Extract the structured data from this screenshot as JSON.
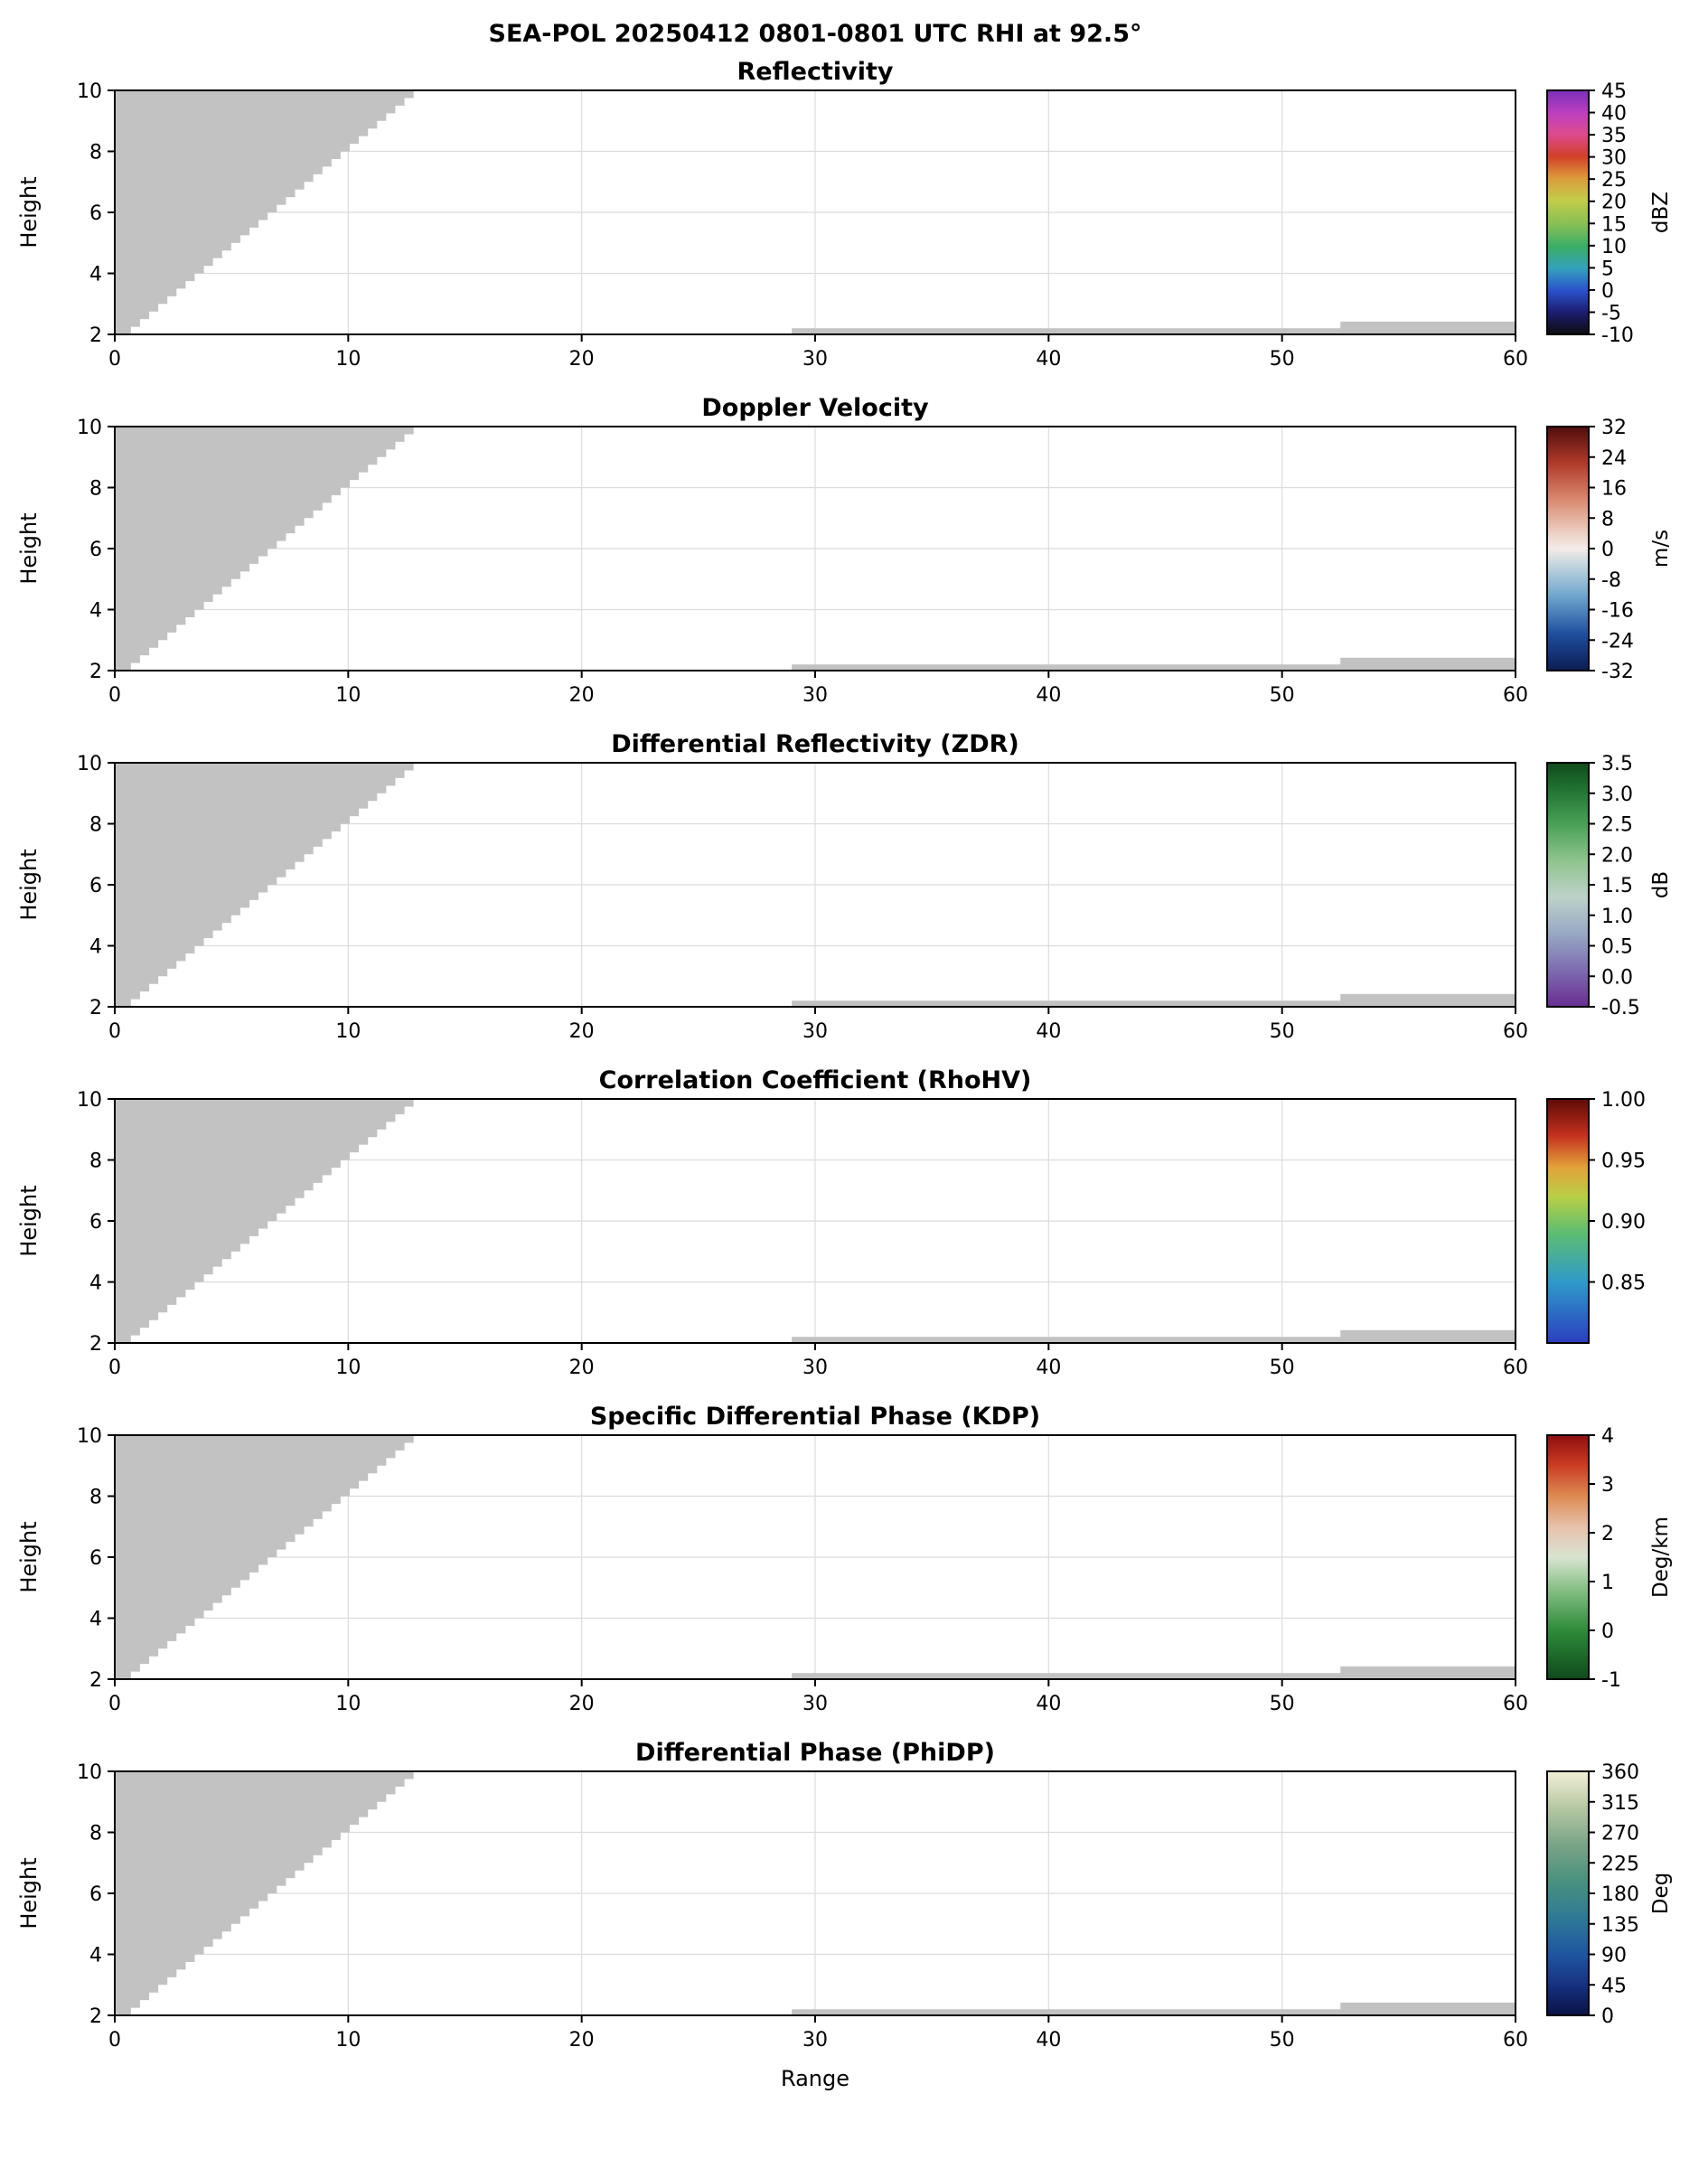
{
  "header": {
    "title": "SEA-POL 20250412 0801-0801 UTC RHI at 92.5°"
  },
  "colors": {
    "mask": "#c2c2c2",
    "grid": "#dcdcdc",
    "axis": "#000000",
    "background": "#ffffff"
  },
  "chart_data": {
    "type": "heatmap",
    "title": "SEA-POL 20250412 0801-0801 UTC RHI at 92.5°",
    "xlabel": "Range",
    "ylabel": "Height",
    "xlim": [
      0,
      60
    ],
    "ylim": [
      2,
      10
    ],
    "x_ticks": [
      0,
      10,
      20,
      30,
      40,
      50,
      60
    ],
    "y_ticks": [
      2,
      4,
      6,
      8,
      10
    ],
    "grid": true,
    "content_note": "All six RHI panels show no echo values; only gray no-data/blanked regions are visible: a staircase wedge in the upper left and thin strips along the bottom axis at far range.",
    "mask": {
      "wedge": {
        "x_bottom": 0.3,
        "y_bottom": 2,
        "x_top": 12.8,
        "y_top": 10,
        "steps": 32
      },
      "strips": [
        {
          "x0": 29.0,
          "x1": 60.0,
          "y0": 2.0,
          "y1": 2.2
        },
        {
          "x0": 52.5,
          "x1": 60.0,
          "y0": 2.0,
          "y1": 2.42
        }
      ]
    },
    "panels": [
      {
        "title": "Reflectivity",
        "unit": "dBZ",
        "cbar_min": -10,
        "cbar_max": 45,
        "cbar_tick_values": [
          45,
          40,
          35,
          30,
          25,
          20,
          15,
          10,
          5,
          0,
          -5,
          -10
        ],
        "cbar_tick_labels": [
          "45",
          "40",
          "35",
          "30",
          "25",
          "20",
          "15",
          "10",
          "5",
          "0",
          "-5",
          "-10"
        ],
        "cbar_stops": [
          [
            0.0,
            "#0d0d0d"
          ],
          [
            0.09,
            "#1c1c70"
          ],
          [
            0.18,
            "#2a52cc"
          ],
          [
            0.27,
            "#34a1bd"
          ],
          [
            0.36,
            "#3aae66"
          ],
          [
            0.45,
            "#86bf54"
          ],
          [
            0.55,
            "#c3cc49"
          ],
          [
            0.64,
            "#dc9b3c"
          ],
          [
            0.73,
            "#d23f28"
          ],
          [
            0.82,
            "#dd4b8f"
          ],
          [
            0.91,
            "#bc3fc0"
          ],
          [
            1.0,
            "#7a2fb8"
          ]
        ]
      },
      {
        "title": "Doppler Velocity",
        "unit": "m/s",
        "cbar_min": -32,
        "cbar_max": 32,
        "cbar_tick_values": [
          32,
          24,
          16,
          8,
          0,
          -8,
          -16,
          -24,
          -32
        ],
        "cbar_tick_labels": [
          "32",
          "24",
          "16",
          "8",
          "0",
          "-8",
          "-16",
          "-24",
          "-32"
        ],
        "cbar_stops": [
          [
            0.0,
            "#0c1c52"
          ],
          [
            0.15,
            "#1e4f9e"
          ],
          [
            0.3,
            "#6aa3cc"
          ],
          [
            0.44,
            "#c8d8de"
          ],
          [
            0.5,
            "#f3ece8"
          ],
          [
            0.56,
            "#edd2c6"
          ],
          [
            0.7,
            "#d98a70"
          ],
          [
            0.85,
            "#b03a2a"
          ],
          [
            1.0,
            "#500d0d"
          ]
        ]
      },
      {
        "title": "Differential Reflectivity (ZDR)",
        "unit": "dB",
        "cbar_min": -0.5,
        "cbar_max": 3.5,
        "cbar_tick_values": [
          3.5,
          3.0,
          2.5,
          2.0,
          1.5,
          1.0,
          0.5,
          0.0,
          -0.5
        ],
        "cbar_tick_labels": [
          "3.5",
          "3.0",
          "2.5",
          "2.0",
          "1.5",
          "1.0",
          "0.5",
          "0.0",
          "-0.5"
        ],
        "cbar_stops": [
          [
            0.0,
            "#6a2d91"
          ],
          [
            0.15,
            "#7d6cb0"
          ],
          [
            0.3,
            "#97a8c4"
          ],
          [
            0.45,
            "#bdd2c8"
          ],
          [
            0.6,
            "#8fc48e"
          ],
          [
            0.75,
            "#49a054"
          ],
          [
            0.9,
            "#1f7030"
          ],
          [
            1.0,
            "#0f4a1c"
          ]
        ]
      },
      {
        "title": "Correlation Coefficient (RhoHV)",
        "unit": "",
        "cbar_min": 0.8,
        "cbar_max": 1.0,
        "cbar_tick_values": [
          1.0,
          0.95,
          0.9,
          0.85
        ],
        "cbar_tick_labels": [
          "1.00",
          "0.95",
          "0.90",
          "0.85"
        ],
        "cbar_stops": [
          [
            0.0,
            "#2b3fbf"
          ],
          [
            0.25,
            "#2f9ac9"
          ],
          [
            0.45,
            "#5dbd72"
          ],
          [
            0.6,
            "#b9cf45"
          ],
          [
            0.72,
            "#e3a23a"
          ],
          [
            0.85,
            "#c4311f"
          ],
          [
            1.0,
            "#5e0b06"
          ]
        ]
      },
      {
        "title": "Specific Differential Phase (KDP)",
        "unit": "Deg/km",
        "cbar_min": -1,
        "cbar_max": 4,
        "cbar_tick_values": [
          4,
          3,
          2,
          1,
          0,
          -1
        ],
        "cbar_tick_labels": [
          "4",
          "3",
          "2",
          "1",
          "0",
          "-1"
        ],
        "cbar_stops": [
          [
            0.0,
            "#0f4a1c"
          ],
          [
            0.2,
            "#2e8b3a"
          ],
          [
            0.35,
            "#7cba7c"
          ],
          [
            0.5,
            "#d8e4d0"
          ],
          [
            0.62,
            "#e7c3ae"
          ],
          [
            0.75,
            "#dd8a52"
          ],
          [
            0.88,
            "#c93a22"
          ],
          [
            1.0,
            "#8f0f0f"
          ]
        ]
      },
      {
        "title": "Differential Phase (PhiDP)",
        "unit": "Deg",
        "cbar_min": 0,
        "cbar_max": 360,
        "cbar_tick_values": [
          360,
          315,
          270,
          225,
          180,
          135,
          90,
          45,
          0
        ],
        "cbar_tick_labels": [
          "360",
          "315",
          "270",
          "225",
          "180",
          "135",
          "90",
          "45",
          "0"
        ],
        "cbar_stops": [
          [
            0.0,
            "#0a1245"
          ],
          [
            0.12,
            "#16307e"
          ],
          [
            0.25,
            "#1f55a0"
          ],
          [
            0.4,
            "#2e7a96"
          ],
          [
            0.55,
            "#49917e"
          ],
          [
            0.7,
            "#7aa487"
          ],
          [
            0.85,
            "#b5c7a2"
          ],
          [
            1.0,
            "#f3f0d8"
          ]
        ]
      }
    ]
  }
}
